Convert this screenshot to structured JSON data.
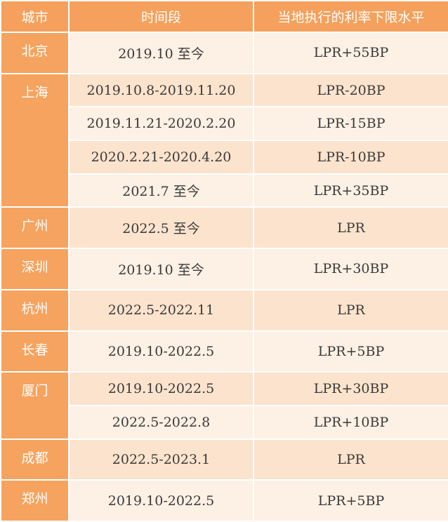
{
  "table": {
    "header": [
      "城市",
      "时间段",
      "当地执行的利率下限水平"
    ],
    "groups": [
      {
        "city": "北京",
        "rows": [
          [
            "2019.10 至今",
            "LPR+55BP"
          ]
        ]
      },
      {
        "city": "上海",
        "rows": [
          [
            "2019.10.8-2019.11.20",
            "LPR-20BP"
          ],
          [
            "2019.11.21-2020.2.20",
            "LPR-15BP"
          ],
          [
            "2020.2.21-2020.4.20",
            "LPR-10BP"
          ],
          [
            "2021.7 至今",
            "LPR+35BP"
          ]
        ]
      },
      {
        "city": "广州",
        "rows": [
          [
            "2022.5 至今",
            "LPR"
          ]
        ]
      },
      {
        "city": "深圳",
        "rows": [
          [
            "2019.10 至今",
            "LPR+30BP"
          ]
        ]
      },
      {
        "city": "杭州",
        "rows": [
          [
            "2022.5-2022.11",
            "LPR"
          ]
        ]
      },
      {
        "city": "长春",
        "rows": [
          [
            "2019.10-2022.5",
            "LPR+5BP"
          ]
        ]
      },
      {
        "city": "厦门",
        "rows": [
          [
            "2019.10-2022.5",
            "LPR+30BP"
          ],
          [
            "2022.5-2022.8",
            "LPR+10BP"
          ]
        ]
      },
      {
        "city": "成都",
        "rows": [
          [
            "2022.5-2023.1",
            "LPR"
          ]
        ]
      },
      {
        "city": "郑州",
        "rows": [
          [
            "2019.10-2022.5",
            "LPR+5BP"
          ]
        ]
      }
    ]
  }
}
